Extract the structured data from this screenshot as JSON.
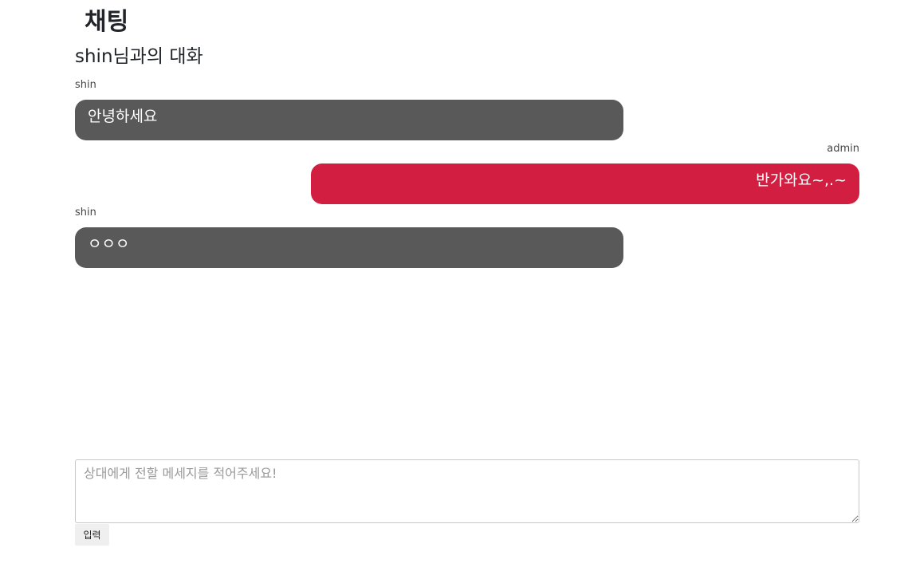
{
  "page": {
    "title": "채팅",
    "conversation_title": "shin님과의 대화"
  },
  "messages": [
    {
      "sender": "shin",
      "text": "안녕하세요",
      "direction": "incoming"
    },
    {
      "sender": "admin",
      "text": "반가와요~,.~",
      "direction": "outgoing"
    },
    {
      "sender": "shin",
      "text": "ㅇㅇㅇ",
      "direction": "incoming"
    }
  ],
  "composer": {
    "placeholder": "상대에게 전할 메세지를 적어주세요!",
    "value": "",
    "send_label": "입력"
  },
  "colors": {
    "incoming_bubble": "#595959",
    "outgoing_bubble": "#d11e41",
    "bubble_text": "#ffffff"
  }
}
